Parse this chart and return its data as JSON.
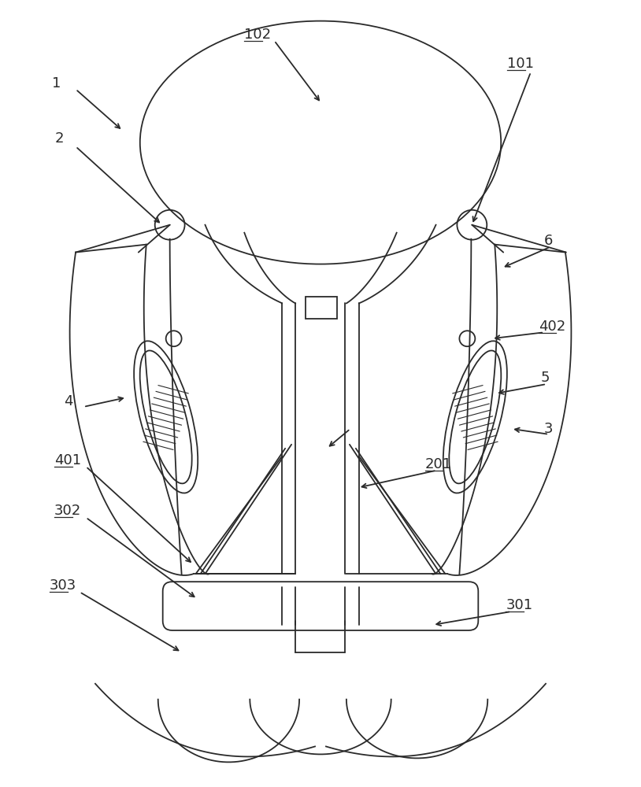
{
  "bg_color": "#ffffff",
  "line_color": "#2a2a2a",
  "lw": 1.3,
  "fig_w": 8.14,
  "fig_h": 10.0,
  "dpi": 100
}
